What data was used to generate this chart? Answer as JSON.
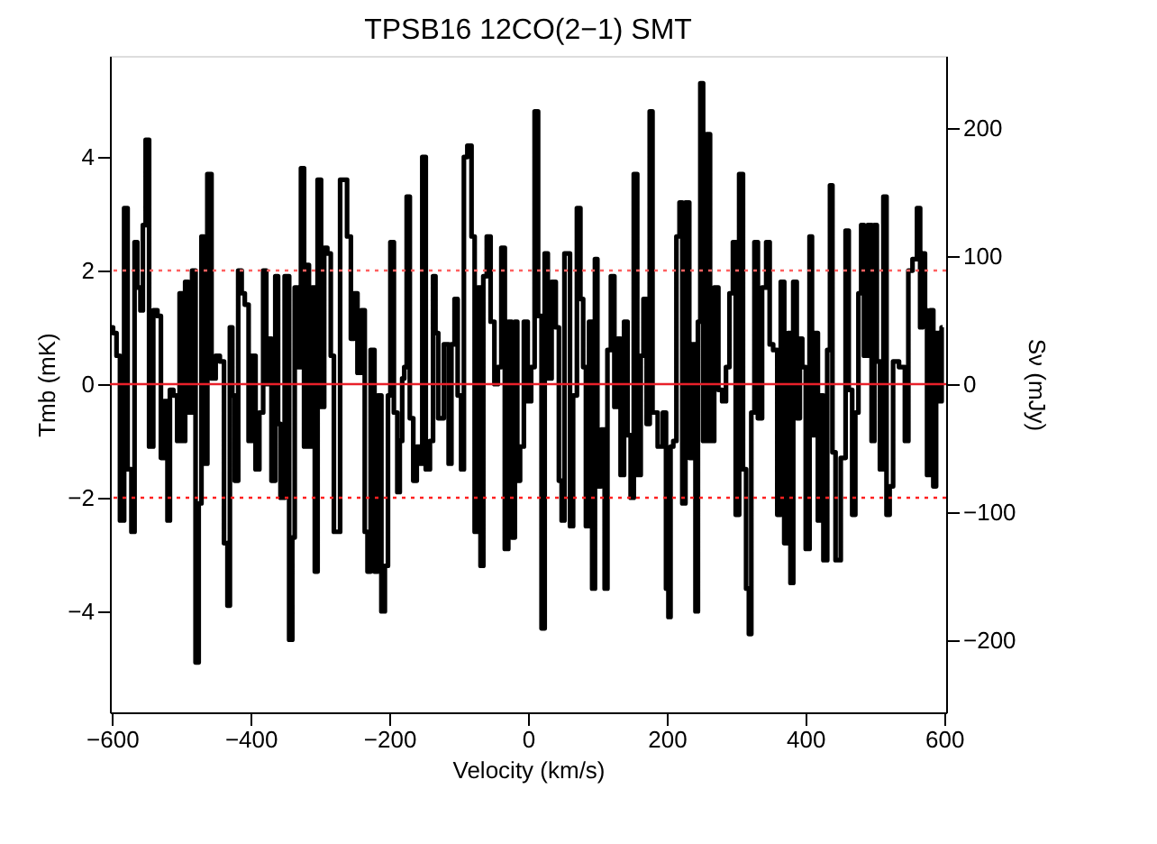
{
  "chart_data": {
    "type": "step",
    "title": "TPSB16  12CO(2−1)  SMT",
    "xlabel": "Velocity (km/s)",
    "ylabel": "Tmb (mK)",
    "y2label": "Sν (mJy)",
    "xlim": [
      -603,
      603
    ],
    "xticks": [
      -600,
      -400,
      -200,
      0,
      200,
      400,
      600
    ],
    "ylim": [
      -5.78,
      5.78
    ],
    "yticks": [
      -4,
      -2,
      0,
      2,
      4
    ],
    "y2lim": [
      -256,
      256
    ],
    "y2ticks": [
      -200,
      -100,
      0,
      100,
      200
    ],
    "grid": false,
    "ref_lines": [
      {
        "axis": "y",
        "value": 0,
        "color": "#e8202a",
        "line_style": "solid"
      },
      {
        "axis": "y",
        "value": 2,
        "color": "#ff6060",
        "line_style": "dotted"
      },
      {
        "axis": "y",
        "value": -2,
        "color": "#ff2020",
        "line_style": "dotted"
      }
    ],
    "series": [
      {
        "color": "#000000",
        "x": [
          -602,
          -595,
          -592,
          -585,
          -580,
          -575,
          -569,
          -566,
          -561,
          -557,
          -554,
          -549,
          -544,
          -537,
          -532,
          -527,
          -522,
          -518,
          -515,
          -508,
          -504,
          -501,
          -496,
          -493,
          -487,
          -482,
          -477,
          -473,
          -469,
          -466,
          -459,
          -454,
          -447,
          -442,
          -435,
          -432,
          -428,
          -425,
          -421,
          -415,
          -411,
          -406,
          -400,
          -396,
          -390,
          -385,
          -379,
          -376,
          -373,
          -367,
          -362,
          -359,
          -355,
          -347,
          -342,
          -338,
          -335,
          -330,
          -325,
          -321,
          -318,
          -314,
          -309,
          -306,
          -301,
          -296,
          -292,
          -287,
          -282,
          -278,
          -264,
          -258,
          -253,
          -249,
          -243,
          -238,
          -233,
          -230,
          -224,
          -219,
          -214,
          -209,
          -204,
          -200,
          -197,
          -190,
          -187,
          -183,
          -180,
          -177,
          -173,
          -168,
          -163,
          -158,
          -154,
          -151,
          -144,
          -139,
          -135,
          -132,
          -127,
          -116,
          -113,
          -108,
          -104,
          -99,
          -94,
          -91,
          -84,
          -79,
          -75,
          -70,
          -67,
          -62,
          -57,
          -51,
          -46,
          -41,
          -36,
          -31,
          -26,
          -21,
          -17,
          -14,
          -9,
          -3,
          2,
          7,
          12,
          17,
          22,
          26,
          31,
          37,
          43,
          46,
          51,
          54,
          59,
          62,
          68,
          73,
          78,
          81,
          86,
          90,
          95,
          98,
          102,
          109,
          112,
          117,
          122,
          127,
          131,
          136,
          141,
          146,
          150,
          155,
          160,
          165,
          168,
          174,
          177,
          182,
          192,
          197,
          201,
          204,
          207,
          212,
          216,
          221,
          224,
          230,
          235,
          240,
          243,
          247,
          250,
          255,
          260,
          265,
          272,
          277,
          283,
          288,
          293,
          298,
          301,
          308,
          312,
          317,
          320,
          324,
          329,
          334,
          341,
          346,
          351,
          356,
          363,
          366,
          373,
          377,
          380,
          385,
          390,
          394,
          397,
          404,
          408,
          411,
          416,
          420,
          423,
          429,
          434,
          437,
          441,
          446,
          456,
          460,
          465,
          470,
          474,
          479,
          482,
          487,
          493,
          498,
          501,
          505,
          510,
          515,
          519,
          524,
          529,
          541,
          546,
          551,
          558,
          564,
          567,
          571,
          574,
          577,
          583,
          586,
          591,
          595,
          598
        ],
        "values": [
          1.0,
          0.9,
          0.5,
          -2.4,
          3.1,
          -1.5,
          -2.6,
          2.5,
          1.7,
          1.3,
          2.8,
          4.3,
          -1.1,
          1.3,
          1.2,
          -1.3,
          -0.3,
          -2.4,
          -0.1,
          -0.2,
          -1.0,
          1.6,
          -1.0,
          1.8,
          -0.5,
          2.0,
          -4.9,
          -2.1,
          2.6,
          -1.4,
          3.7,
          0.1,
          0.5,
          0.4,
          -2.8,
          -3.9,
          1.0,
          -0.2,
          -1.7,
          2.0,
          1.6,
          1.4,
          -1.0,
          0.5,
          -1.5,
          -0.5,
          2.0,
          0.0,
          0.8,
          -1.7,
          1.9,
          -0.7,
          -2.0,
          1.9,
          -4.5,
          -2.7,
          1.7,
          0.3,
          3.8,
          -1.1,
          2.1,
          -1.1,
          1.7,
          -3.3,
          3.6,
          -0.4,
          2.4,
          2.3,
          0.5,
          -2.6,
          3.6,
          2.6,
          0.8,
          1.6,
          0.2,
          1.3,
          -2.6,
          -3.3,
          0.6,
          -3.3,
          -0.2,
          -4.0,
          -3.2,
          -0.2,
          2.5,
          -0.5,
          -1.9,
          -1.0,
          0.1,
          0.3,
          3.3,
          -0.6,
          -1.7,
          -1.1,
          -1.4,
          4.0,
          -1.5,
          -1.0,
          1.9,
          0.9,
          -0.6,
          0.7,
          -1.4,
          0.7,
          1.5,
          -0.2,
          -1.5,
          4.0,
          4.2,
          2.6,
          -2.6,
          1.7,
          -3.2,
          1.9,
          2.6,
          1.1,
          0.0,
          0.3,
          2.4,
          -2.9,
          1.1,
          -2.7,
          1.1,
          -1.7,
          -1.1,
          1.1,
          -0.3,
          0.3,
          4.8,
          1.2,
          -4.3,
          2.3,
          0.1,
          1.8,
          1.0,
          -1.7,
          -2.4,
          2.3,
          2.3,
          -2.5,
          -0.2,
          3.1,
          1.5,
          0.3,
          -2.5,
          1.1,
          -3.6,
          2.2,
          -1.8,
          -0.8,
          -3.6,
          0.6,
          1.9,
          -0.4,
          0.8,
          -1.6,
          1.1,
          -0.9,
          -2.0,
          3.7,
          -1.6,
          0.5,
          1.5,
          -0.7,
          4.8,
          -0.5,
          -1.1,
          -0.5,
          -3.6,
          -4.1,
          -1.1,
          -1.0,
          2.6,
          3.2,
          -2.1,
          3.2,
          -1.3,
          0.7,
          -4.0,
          1.1,
          5.3,
          -1.0,
          4.4,
          -1.0,
          1.7,
          -0.1,
          -0.3,
          0.3,
          1.6,
          2.5,
          -2.3,
          3.7,
          -1.5,
          -3.6,
          -4.4,
          -0.5,
          2.5,
          -0.6,
          1.7,
          2.5,
          0.7,
          0.6,
          -2.3,
          1.8,
          -2.8,
          0.9,
          -3.5,
          1.8,
          -0.6,
          0.8,
          0.3,
          -2.9,
          2.6,
          -0.9,
          0.9,
          -2.4,
          -0.2,
          -3.1,
          0.6,
          3.5,
          -1.2,
          -3.1,
          -1.3,
          2.7,
          -0.1,
          -2.3,
          -0.5,
          1.6,
          2.8,
          0.5,
          2.8,
          -1.0,
          2.8,
          0.4,
          -1.5,
          3.3,
          -2.3,
          -1.8,
          0.4,
          0.3,
          -1.0,
          2.0,
          2.2,
          3.1,
          1.0,
          2.3,
          1.3,
          -1.6,
          1.3,
          -1.8,
          0.9,
          -0.3,
          1.0
        ]
      }
    ]
  }
}
